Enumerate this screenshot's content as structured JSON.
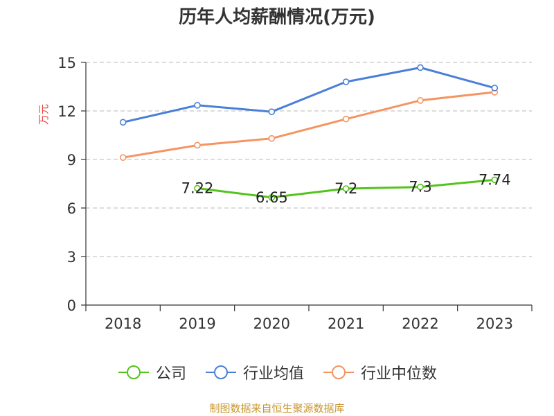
{
  "chart_data": {
    "type": "line",
    "title": "历年人均薪酬情况(万元)",
    "ylabel": "万元",
    "xlabel": "",
    "categories": [
      "2018",
      "2019",
      "2020",
      "2021",
      "2022",
      "2023"
    ],
    "ylim": [
      0,
      15
    ],
    "yticks": [
      0,
      3,
      6,
      9,
      12,
      15
    ],
    "grid": true,
    "legend_position": "bottom",
    "series": [
      {
        "name": "公司",
        "color": "#52c41a",
        "values": [
          null,
          7.22,
          6.65,
          7.2,
          7.3,
          7.74
        ],
        "labels": [
          "",
          "7.22",
          "6.65",
          "7.2",
          "7.3",
          "7.74"
        ]
      },
      {
        "name": "行业均值",
        "color": "#4a7fd9",
        "values": [
          11.3,
          12.35,
          11.95,
          13.8,
          14.68,
          13.42
        ]
      },
      {
        "name": "行业中位数",
        "color": "#f59460",
        "values": [
          9.12,
          9.88,
          10.3,
          11.5,
          12.65,
          13.16
        ]
      }
    ]
  },
  "source_note": "制图数据来自恒生聚源数据库"
}
